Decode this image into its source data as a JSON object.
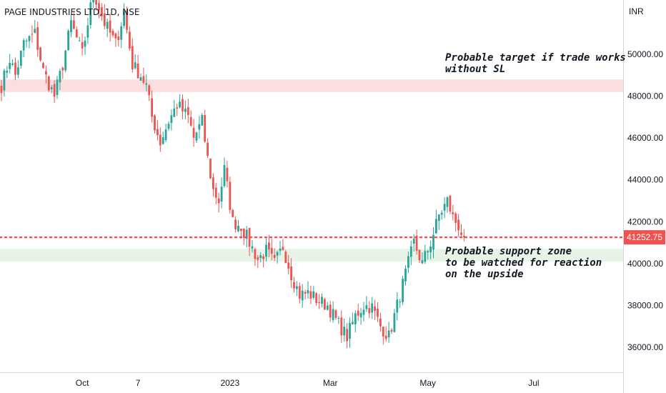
{
  "header": {
    "title": "PAGE INDUSTRIES LTD, 1D, NSE",
    "currency": "INR"
  },
  "colors": {
    "up": "#26a69a",
    "down": "#ef5350",
    "target_zone": "#fddede",
    "support_zone": "#e6f3e6",
    "price_line": "#ef5350",
    "price_label_bg": "#ef5350",
    "price_label_text": "#ffffff"
  },
  "annotations": {
    "target_text": "Probable target if trade works\nwithout SL",
    "support_text": "Probable support zone\nto be watched for reaction\non the upside"
  },
  "chart_data": {
    "type": "candlestick",
    "title": "PAGE INDUSTRIES LTD, 1D, NSE",
    "ylabel": "INR",
    "ylim": [
      34800,
      52600
    ],
    "y_ticks": [
      36000,
      38000,
      40000,
      42000,
      44000,
      46000,
      48000,
      50000
    ],
    "y_tick_labels": [
      "36000.00",
      "38000.00",
      "40000.00",
      "42000.00",
      "44000.00",
      "46000.00",
      "48000.00",
      "50000.00"
    ],
    "x_ticks": [
      {
        "label": "Oct",
        "index": 29
      },
      {
        "label": "7",
        "index": 49
      },
      {
        "label": "2023",
        "index": 82
      },
      {
        "label": "Mar",
        "index": 118
      },
      {
        "label": "May",
        "index": 153
      },
      {
        "label": "Jul",
        "index": 191
      }
    ],
    "last_price": 41252.75,
    "last_price_label": "41252.75",
    "target_zone": [
      48200,
      48800
    ],
    "support_zone": [
      40100,
      40700
    ],
    "waypoints": [
      [
        0,
        48500
      ],
      [
        3,
        49800
      ],
      [
        5,
        49000
      ],
      [
        8,
        50500
      ],
      [
        12,
        51000
      ],
      [
        15,
        49200
      ],
      [
        19,
        48000
      ],
      [
        22,
        49500
      ],
      [
        25,
        51500
      ],
      [
        29,
        50000
      ],
      [
        33,
        53000
      ],
      [
        37,
        51500
      ],
      [
        41,
        50500
      ],
      [
        44,
        52000
      ],
      [
        47,
        49500
      ],
      [
        50,
        49000
      ],
      [
        52,
        48500
      ],
      [
        54,
        47000
      ],
      [
        57,
        45800
      ],
      [
        60,
        46800
      ],
      [
        63,
        47600
      ],
      [
        67,
        47000
      ],
      [
        69,
        46000
      ],
      [
        72,
        46800
      ],
      [
        74,
        45000
      ],
      [
        76,
        43500
      ],
      [
        78,
        43000
      ],
      [
        80,
        44500
      ],
      [
        83,
        42000
      ],
      [
        86,
        41800
      ],
      [
        89,
        41000
      ],
      [
        92,
        40200
      ],
      [
        95,
        40600
      ],
      [
        98,
        40000
      ],
      [
        101,
        40800
      ],
      [
        104,
        39500
      ],
      [
        107,
        38500
      ],
      [
        110,
        38600
      ],
      [
        114,
        38200
      ],
      [
        117,
        38000
      ],
      [
        120,
        37300
      ],
      [
        124,
        36500
      ],
      [
        127,
        37500
      ],
      [
        130,
        38000
      ],
      [
        133,
        37900
      ],
      [
        136,
        37000
      ],
      [
        139,
        36500
      ],
      [
        142,
        38000
      ],
      [
        145,
        39500
      ],
      [
        148,
        41000
      ],
      [
        151,
        40000
      ],
      [
        154,
        41000
      ],
      [
        157,
        42300
      ],
      [
        160,
        43000
      ],
      [
        162,
        42200
      ],
      [
        164,
        41800
      ],
      [
        166,
        41200
      ]
    ]
  }
}
